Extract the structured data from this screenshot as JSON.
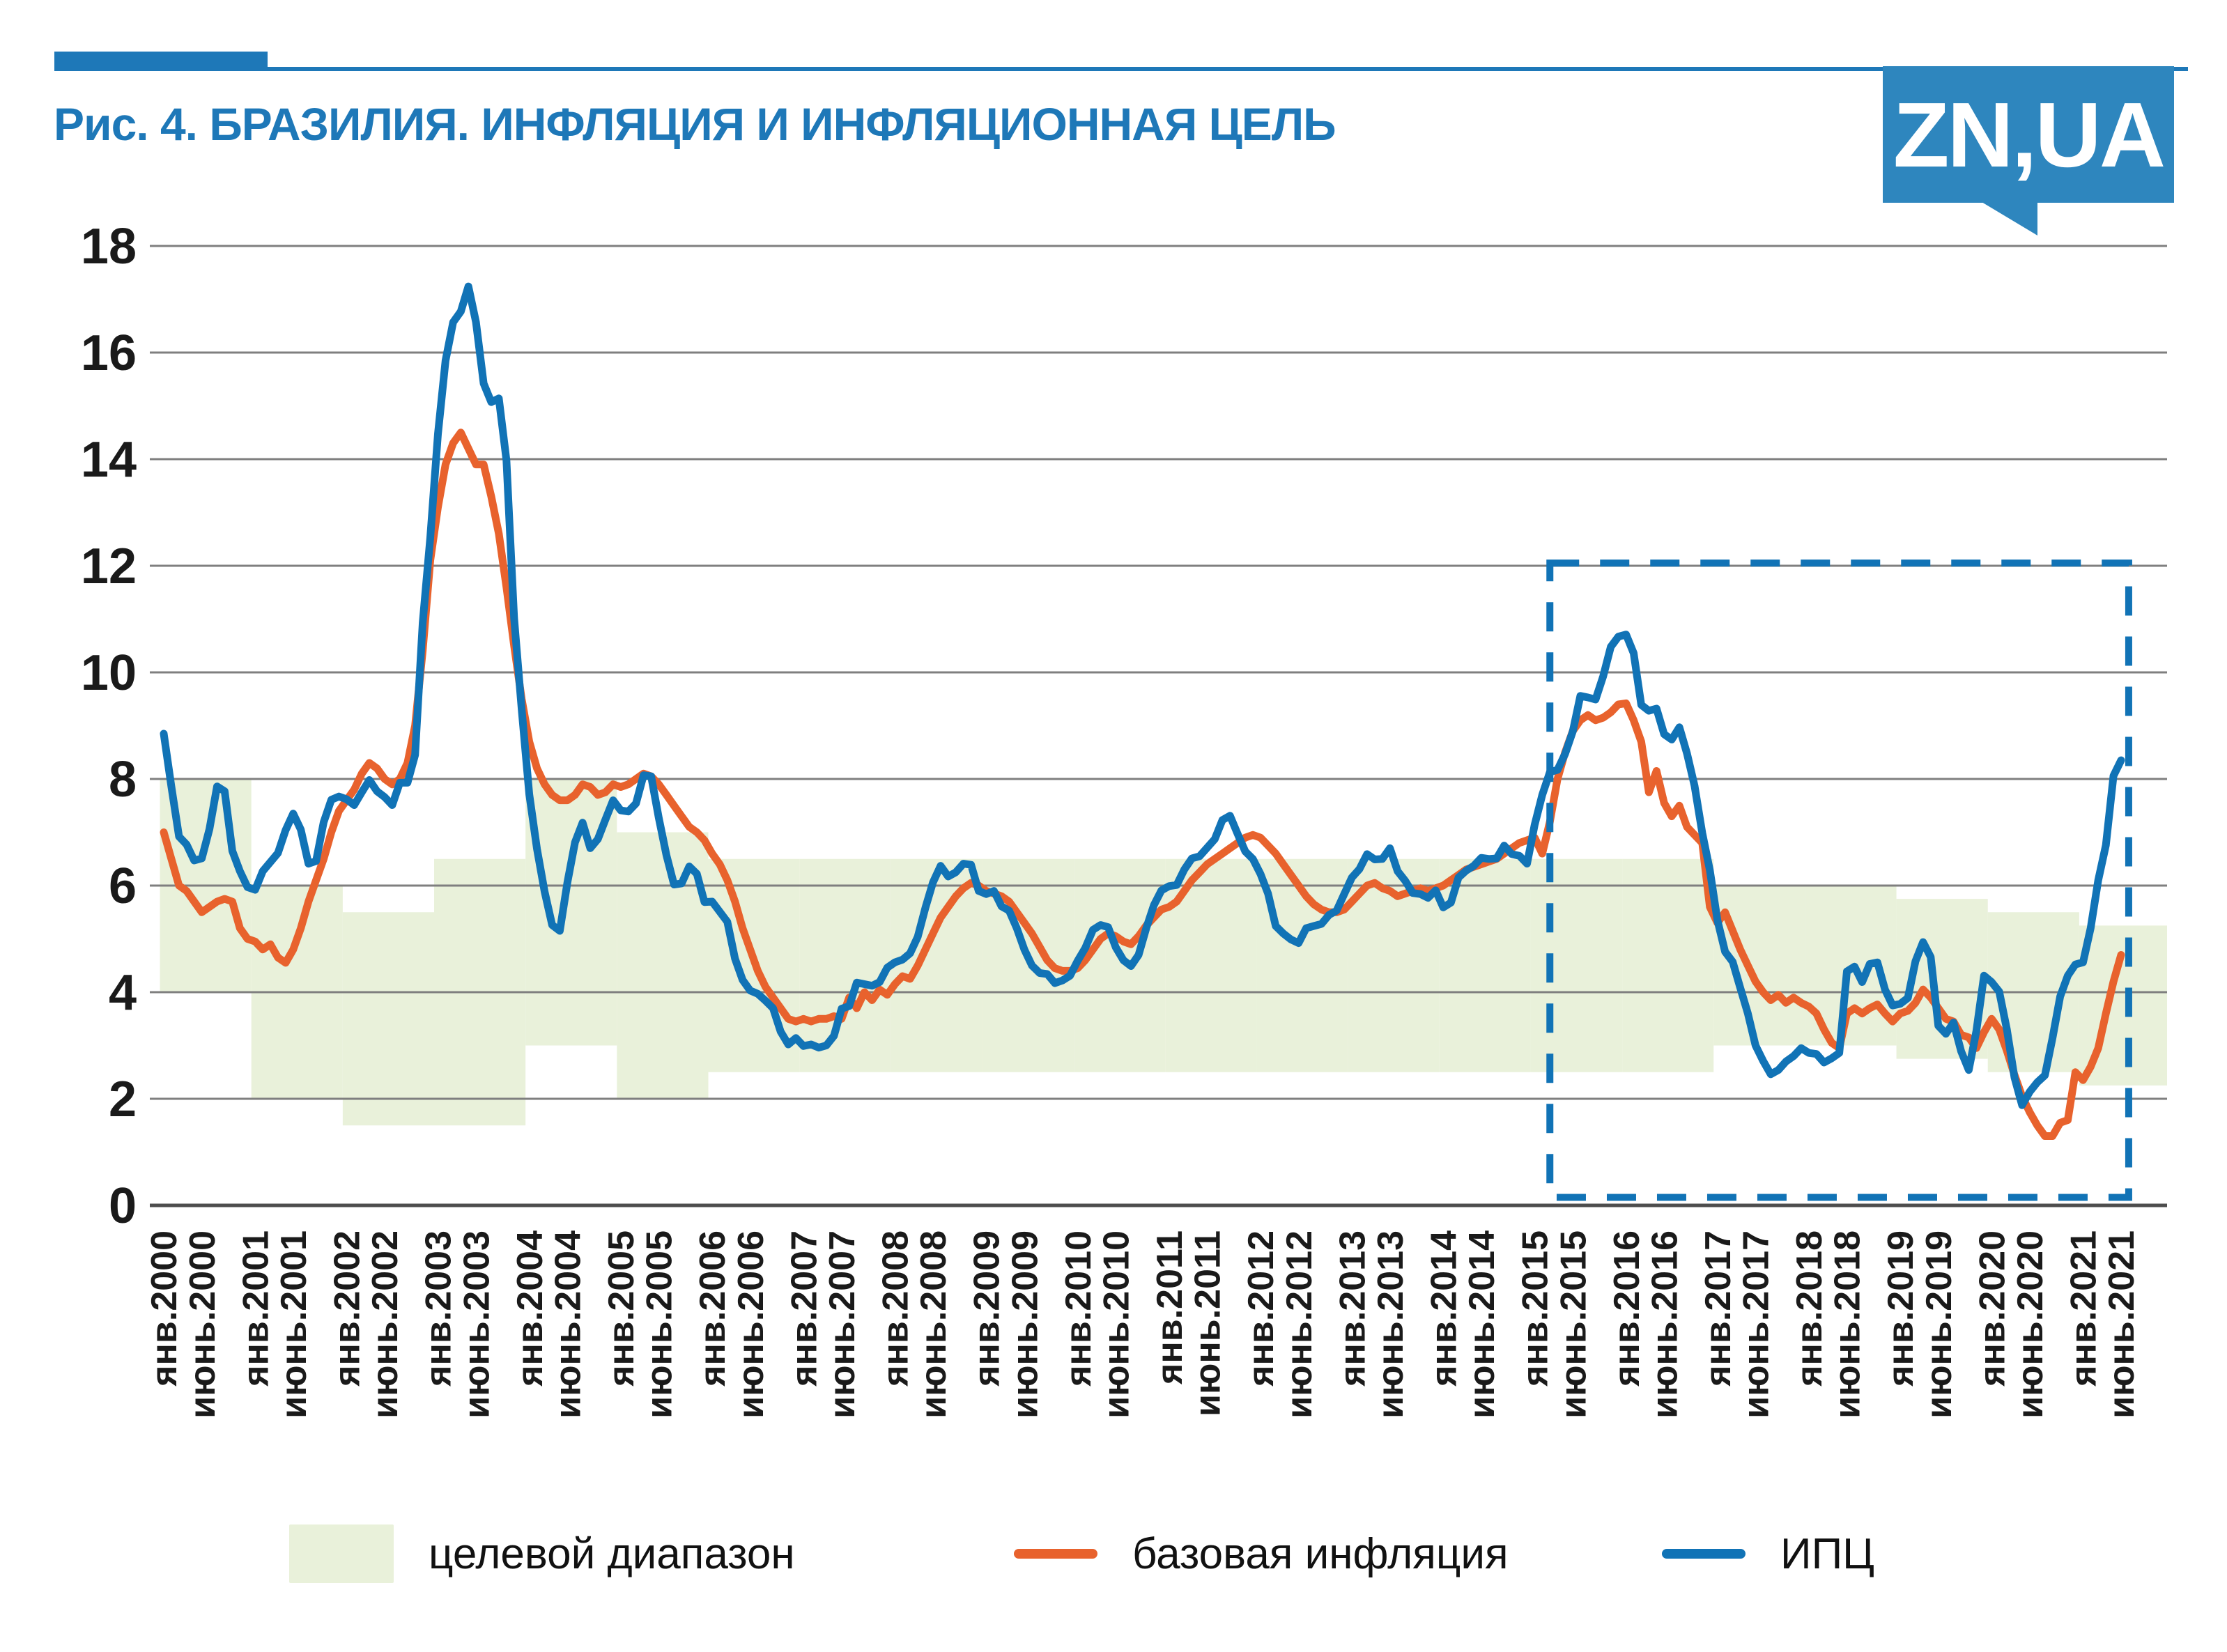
{
  "header": {
    "title": "Рис. 4. БРАЗИЛИЯ. ИНФЛЯЦИЯ И ИНФЛЯЦИОННАЯ ЦЕЛЬ",
    "title_color": "#1e78b8",
    "accent_color": "#1e78b8",
    "logo_text": "ZN,UA",
    "logo_bg_color": "#2e86be"
  },
  "chart_data": {
    "type": "line",
    "title": "БРАЗИЛИЯ. ИНФЛЯЦИЯ И ИНФЛЯЦИОННАЯ ЦЕЛЬ",
    "grid": true,
    "legend_position": "bottom",
    "ylim": [
      0,
      18
    ],
    "yticks": [
      0,
      2,
      4,
      6,
      8,
      10,
      12,
      14,
      16,
      18
    ],
    "x_start_month": "2000-01",
    "x_end_month": "2021-06",
    "x_tick_labels": [
      "янв.2000",
      "июнь.2000",
      "янв.2001",
      "июнь.2001",
      "янв.2002",
      "июнь.2002",
      "янв.2003",
      "июнь.2003",
      "янв.2004",
      "июнь.2004",
      "янв.2005",
      "июнь.2005",
      "янв.2006",
      "июнь.2006",
      "янв.2007",
      "июнь.2007",
      "янв.2008",
      "июнь.2008",
      "янв.2009",
      "июнь.2009",
      "янв.2010",
      "июнь.2010",
      "янв.2011",
      "июнь.2011",
      "янв.2012",
      "июнь.2012",
      "янв.2013",
      "июнь.2013",
      "янв.2014",
      "июнь.2014",
      "янв.2015",
      "июнь.2015",
      "янв.2016",
      "июнь.2016",
      "янв.2017",
      "июнь.2017",
      "янв.2018",
      "июнь.2018",
      "янв.2019",
      "июнь.2019",
      "янв.2020",
      "июнь.2020",
      "янв.2021",
      "июнь.2021"
    ],
    "target_band": {
      "name": "целевой диапазон",
      "color": "#e9f1da",
      "steps": [
        {
          "year": 2000,
          "low": 4,
          "high": 8
        },
        {
          "year": 2001,
          "low": 2,
          "high": 6
        },
        {
          "year": 2002,
          "low": 1.5,
          "high": 5.5
        },
        {
          "year": 2003,
          "low": 1.5,
          "high": 6.5
        },
        {
          "year": 2004,
          "low": 3,
          "high": 8
        },
        {
          "year": 2005,
          "low": 2,
          "high": 7
        },
        {
          "year": 2006,
          "low": 2.5,
          "high": 6.5
        },
        {
          "year": 2007,
          "low": 2.5,
          "high": 6.5
        },
        {
          "year": 2008,
          "low": 2.5,
          "high": 6.5
        },
        {
          "year": 2009,
          "low": 2.5,
          "high": 6.5
        },
        {
          "year": 2010,
          "low": 2.5,
          "high": 6.5
        },
        {
          "year": 2011,
          "low": 2.5,
          "high": 6.5
        },
        {
          "year": 2012,
          "low": 2.5,
          "high": 6.5
        },
        {
          "year": 2013,
          "low": 2.5,
          "high": 6.5
        },
        {
          "year": 2014,
          "low": 2.5,
          "high": 6.5
        },
        {
          "year": 2015,
          "low": 2.5,
          "high": 6.5
        },
        {
          "year": 2016,
          "low": 2.5,
          "high": 6.5
        },
        {
          "year": 2017,
          "low": 3,
          "high": 6
        },
        {
          "year": 2018,
          "low": 3,
          "high": 6
        },
        {
          "year": 2019,
          "low": 2.75,
          "high": 5.75
        },
        {
          "year": 2020,
          "low": 2.5,
          "high": 5.5
        },
        {
          "year": 2021,
          "low": 2.25,
          "high": 5.25
        }
      ]
    },
    "series": [
      {
        "name": "базовая инфляция",
        "color": "#e8622d",
        "values": [
          7.0,
          6.5,
          6.0,
          5.9,
          5.7,
          5.5,
          5.6,
          5.7,
          5.75,
          5.7,
          5.2,
          5.0,
          4.95,
          4.8,
          4.9,
          4.65,
          4.55,
          4.8,
          5.2,
          5.7,
          6.1,
          6.5,
          7.0,
          7.4,
          7.6,
          7.8,
          8.1,
          8.3,
          8.2,
          8.0,
          7.9,
          8.0,
          8.3,
          9.0,
          10.4,
          12.1,
          13.1,
          13.9,
          14.3,
          14.5,
          14.2,
          13.9,
          13.9,
          13.3,
          12.6,
          11.6,
          10.5,
          9.5,
          8.7,
          8.2,
          7.9,
          7.7,
          7.6,
          7.6,
          7.7,
          7.9,
          7.85,
          7.7,
          7.75,
          7.9,
          7.85,
          7.9,
          8.0,
          8.1,
          8.05,
          7.9,
          7.7,
          7.5,
          7.3,
          7.1,
          7.0,
          6.85,
          6.6,
          6.4,
          6.1,
          5.7,
          5.2,
          4.8,
          4.4,
          4.1,
          3.9,
          3.7,
          3.5,
          3.45,
          3.5,
          3.45,
          3.5,
          3.5,
          3.55,
          3.5,
          3.9,
          3.7,
          4.0,
          3.85,
          4.05,
          3.95,
          4.15,
          4.3,
          4.25,
          4.5,
          4.8,
          5.1,
          5.4,
          5.6,
          5.8,
          5.95,
          6.05,
          6.0,
          5.9,
          5.85,
          5.8,
          5.7,
          5.5,
          5.3,
          5.1,
          4.85,
          4.6,
          4.45,
          4.4,
          4.4,
          4.45,
          4.6,
          4.8,
          5.0,
          5.1,
          5.05,
          4.95,
          4.9,
          5.05,
          5.25,
          5.4,
          5.55,
          5.6,
          5.7,
          5.9,
          6.1,
          6.25,
          6.4,
          6.5,
          6.6,
          6.7,
          6.8,
          6.9,
          6.95,
          6.9,
          6.75,
          6.6,
          6.4,
          6.2,
          6.0,
          5.8,
          5.65,
          5.55,
          5.5,
          5.5,
          5.55,
          5.7,
          5.85,
          6.0,
          6.05,
          5.95,
          5.9,
          5.8,
          5.85,
          5.9,
          5.95,
          5.9,
          5.95,
          6.0,
          6.1,
          6.2,
          6.3,
          6.35,
          6.4,
          6.45,
          6.5,
          6.6,
          6.7,
          6.8,
          6.85,
          6.9,
          6.6,
          7.2,
          8.0,
          8.5,
          8.9,
          9.1,
          9.2,
          9.1,
          9.15,
          9.25,
          9.4,
          9.42,
          9.1,
          8.7,
          7.75,
          8.15,
          7.55,
          7.3,
          7.5,
          7.1,
          6.95,
          6.8,
          5.6,
          5.3,
          5.5,
          5.15,
          4.8,
          4.5,
          4.2,
          4.0,
          3.85,
          3.95,
          3.8,
          3.9,
          3.8,
          3.73,
          3.6,
          3.3,
          3.05,
          2.95,
          3.6,
          3.7,
          3.6,
          3.7,
          3.77,
          3.6,
          3.45,
          3.6,
          3.65,
          3.8,
          4.05,
          3.9,
          3.7,
          3.5,
          3.45,
          3.2,
          3.15,
          2.95,
          3.25,
          3.5,
          3.3,
          2.9,
          2.45,
          2.05,
          1.75,
          1.5,
          1.3,
          1.3,
          1.55,
          1.6,
          2.5,
          2.35,
          2.6,
          2.95,
          3.6,
          4.2,
          4.7
        ]
      },
      {
        "name": "ИПЦ",
        "color": "#1173b6",
        "values": [
          8.85,
          7.86,
          6.92,
          6.77,
          6.47,
          6.51,
          7.06,
          7.86,
          7.77,
          6.65,
          6.27,
          5.97,
          5.92,
          6.27,
          6.44,
          6.61,
          7.04,
          7.35,
          7.05,
          6.41,
          6.46,
          7.19,
          7.61,
          7.67,
          7.62,
          7.51,
          7.75,
          7.98,
          7.77,
          7.66,
          7.51,
          7.93,
          7.93,
          8.45,
          10.93,
          12.53,
          14.47,
          15.85,
          16.57,
          16.77,
          17.24,
          16.57,
          15.42,
          15.07,
          15.14,
          13.98,
          11.02,
          9.3,
          7.71,
          6.69,
          5.89,
          5.26,
          5.15,
          6.06,
          6.81,
          7.18,
          6.7,
          6.87,
          7.24,
          7.6,
          7.41,
          7.39,
          7.54,
          8.07,
          8.05,
          7.27,
          6.57,
          6.02,
          6.04,
          6.36,
          6.22,
          5.69,
          5.7,
          5.51,
          5.32,
          4.63,
          4.23,
          4.03,
          3.97,
          3.84,
          3.7,
          3.26,
          3.02,
          3.14,
          2.99,
          3.02,
          2.96,
          3.0,
          3.18,
          3.69,
          3.74,
          4.18,
          4.15,
          4.12,
          4.19,
          4.46,
          4.56,
          4.61,
          4.73,
          5.04,
          5.58,
          6.06,
          6.37,
          6.17,
          6.25,
          6.41,
          6.39,
          5.9,
          5.84,
          5.9,
          5.61,
          5.53,
          5.2,
          4.8,
          4.5,
          4.36,
          4.34,
          4.17,
          4.22,
          4.31,
          4.59,
          4.83,
          5.17,
          5.26,
          5.22,
          4.84,
          4.6,
          4.49,
          4.7,
          5.2,
          5.63,
          5.91,
          5.99,
          6.01,
          6.3,
          6.51,
          6.55,
          6.71,
          6.87,
          7.23,
          7.31,
          6.97,
          6.64,
          6.5,
          6.22,
          5.85,
          5.24,
          5.1,
          4.99,
          4.92,
          5.2,
          5.24,
          5.28,
          5.45,
          5.53,
          5.84,
          6.15,
          6.31,
          6.59,
          6.49,
          6.5,
          6.7,
          6.27,
          6.09,
          5.86,
          5.84,
          5.77,
          5.91,
          5.59,
          5.68,
          6.15,
          6.28,
          6.37,
          6.52,
          6.5,
          6.51,
          6.75,
          6.59,
          6.56,
          6.41,
          7.14,
          7.7,
          8.13,
          8.17,
          8.47,
          8.89,
          9.56,
          9.53,
          9.49,
          9.93,
          10.48,
          10.67,
          10.71,
          10.36,
          9.39,
          9.28,
          9.32,
          8.84,
          8.74,
          8.97,
          8.48,
          7.87,
          6.99,
          6.29,
          5.35,
          4.76,
          4.57,
          4.08,
          3.6,
          3.0,
          2.71,
          2.46,
          2.54,
          2.7,
          2.8,
          2.95,
          2.86,
          2.84,
          2.68,
          2.76,
          2.86,
          4.39,
          4.48,
          4.19,
          4.53,
          4.56,
          4.05,
          3.75,
          3.78,
          3.89,
          4.58,
          4.94,
          4.66,
          3.37,
          3.22,
          3.43,
          2.89,
          2.54,
          3.27,
          4.31,
          4.19,
          4.01,
          3.3,
          2.4,
          1.88,
          2.13,
          2.31,
          2.44,
          3.14,
          3.92,
          4.31,
          4.52,
          4.56,
          5.2,
          6.1,
          6.76,
          8.06,
          8.35
        ]
      }
    ],
    "highlight_box": {
      "color": "#1173b6",
      "x_from": "2015-03",
      "x_to": "2021-07",
      "y_from": 0.15,
      "y_to": 12.05
    },
    "grid_color": "#7f7f7f",
    "axis_color": "#4d4d4d",
    "tick_text_color": "#1a1a1a"
  }
}
